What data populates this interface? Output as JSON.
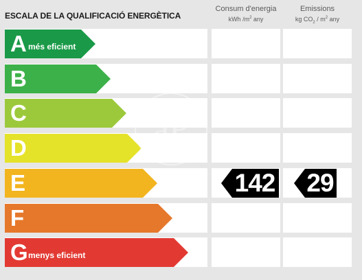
{
  "title": "ESCALA DE LA QUALIFICACIÓ ENERGÈTICA",
  "columns": {
    "consumption": {
      "label": "Consum d'energia",
      "unit_prefix": "kWh /m",
      "unit_sup": "2",
      "unit_suffix": " any"
    },
    "emissions": {
      "label": "Emissions",
      "unit_prefix": "kg CO",
      "unit_sub": "2",
      "unit_mid": " / m",
      "unit_sup": "2",
      "unit_suffix": " any"
    }
  },
  "bands": [
    {
      "letter": "A",
      "note": "més eficient",
      "color": "#1a9a48"
    },
    {
      "letter": "B",
      "note": "",
      "color": "#3db149"
    },
    {
      "letter": "C",
      "note": "",
      "color": "#9cc93b"
    },
    {
      "letter": "D",
      "note": "",
      "color": "#e5e22a"
    },
    {
      "letter": "E",
      "note": "",
      "color": "#f2b51f"
    },
    {
      "letter": "F",
      "note": "",
      "color": "#e6782b"
    },
    {
      "letter": "G",
      "note": "menys eficient",
      "color": "#e23a33"
    }
  ],
  "rating": {
    "band": "E",
    "consumption_value": "142",
    "emissions_value": "29",
    "marker_color": "#000000"
  },
  "watermark": {
    "text": "aP",
    "icon": "watermark-logo"
  }
}
